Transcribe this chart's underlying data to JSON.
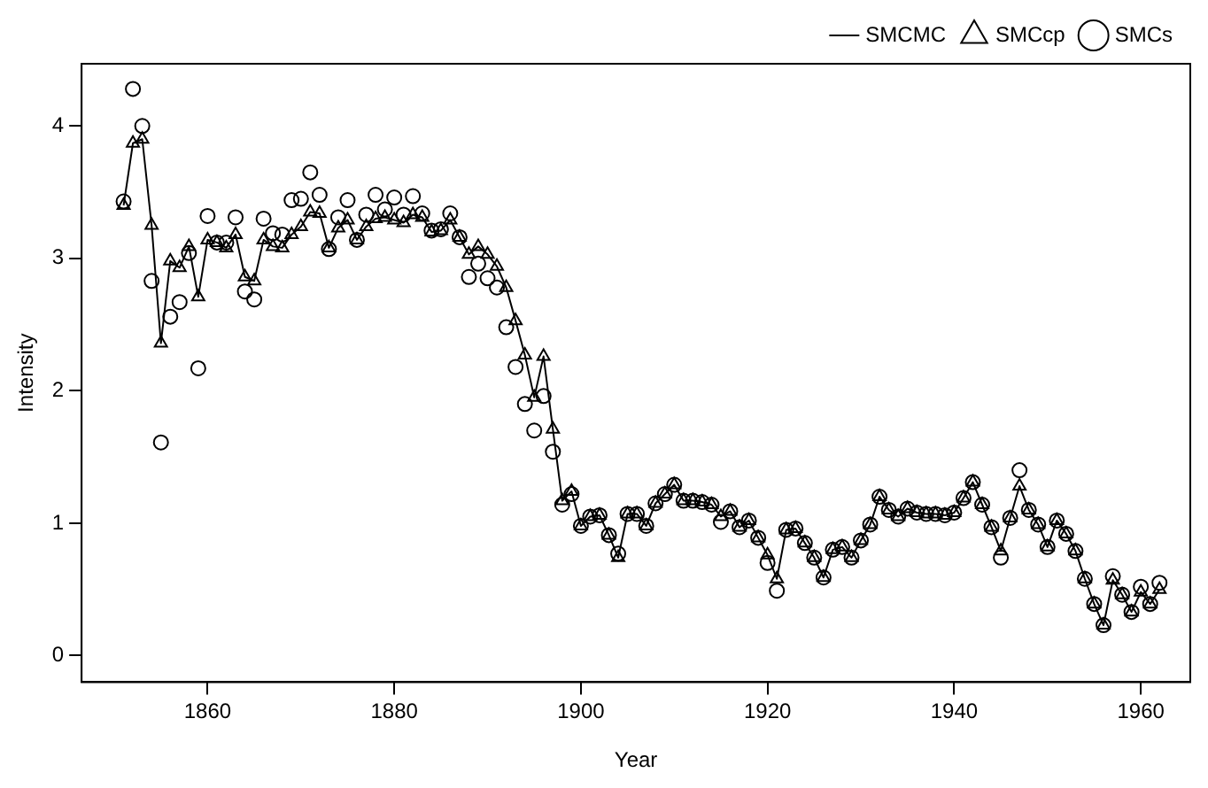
{
  "chart_data": {
    "type": "line",
    "xlabel": "Year",
    "ylabel": "Intensity",
    "x": [
      1851,
      1852,
      1853,
      1854,
      1855,
      1856,
      1857,
      1858,
      1859,
      1860,
      1861,
      1862,
      1863,
      1864,
      1865,
      1866,
      1867,
      1868,
      1869,
      1870,
      1871,
      1872,
      1873,
      1874,
      1875,
      1876,
      1877,
      1878,
      1879,
      1880,
      1881,
      1882,
      1883,
      1884,
      1885,
      1886,
      1887,
      1888,
      1889,
      1890,
      1891,
      1892,
      1893,
      1894,
      1895,
      1896,
      1897,
      1898,
      1899,
      1900,
      1901,
      1902,
      1903,
      1904,
      1905,
      1906,
      1907,
      1908,
      1909,
      1910,
      1911,
      1912,
      1913,
      1914,
      1915,
      1916,
      1917,
      1918,
      1919,
      1920,
      1921,
      1922,
      1923,
      1924,
      1925,
      1926,
      1927,
      1928,
      1929,
      1930,
      1931,
      1932,
      1933,
      1934,
      1935,
      1936,
      1937,
      1938,
      1939,
      1940,
      1941,
      1942,
      1943,
      1944,
      1945,
      1946,
      1947,
      1948,
      1949,
      1950,
      1951,
      1952,
      1953,
      1954,
      1955,
      1956,
      1957,
      1958,
      1959,
      1960,
      1961,
      1962
    ],
    "series": [
      {
        "name": "SMCMC",
        "type": "line",
        "marker": "none",
        "line_style": "solid",
        "color": "#000000",
        "values": [
          3.4,
          3.87,
          3.9,
          3.25,
          2.36,
          2.98,
          2.93,
          3.09,
          2.71,
          3.14,
          3.12,
          3.08,
          3.18,
          2.86,
          2.83,
          3.14,
          3.09,
          3.08,
          3.18,
          3.24,
          3.35,
          3.34,
          3.08,
          3.23,
          3.29,
          3.14,
          3.24,
          3.3,
          3.31,
          3.29,
          3.27,
          3.33,
          3.31,
          3.2,
          3.21,
          3.29,
          3.16,
          3.03,
          3.09,
          3.03,
          2.94,
          2.78,
          2.53,
          2.27,
          1.95,
          2.26,
          1.71,
          1.17,
          1.24,
          0.98,
          1.05,
          1.06,
          0.91,
          0.74,
          1.07,
          1.07,
          0.98,
          1.15,
          1.22,
          1.29,
          1.17,
          1.17,
          1.16,
          1.14,
          1.05,
          1.09,
          0.97,
          1.02,
          0.89,
          0.76,
          0.58,
          0.95,
          0.96,
          0.85,
          0.74,
          0.59,
          0.8,
          0.82,
          0.74,
          0.87,
          0.99,
          1.2,
          1.1,
          1.05,
          1.11,
          1.08,
          1.07,
          1.07,
          1.06,
          1.08,
          1.19,
          1.31,
          1.14,
          0.97,
          0.79,
          1.04,
          1.28,
          1.1,
          0.99,
          0.82,
          1.02,
          0.92,
          0.79,
          0.58,
          0.39,
          0.23,
          0.57,
          0.46,
          0.33,
          0.48,
          0.39,
          0.5
        ]
      },
      {
        "name": "SMCcp",
        "type": "scatter",
        "marker": "triangle",
        "color": "#000000",
        "values": [
          3.4,
          3.87,
          3.9,
          3.25,
          2.36,
          2.98,
          2.93,
          3.09,
          2.71,
          3.14,
          3.12,
          3.08,
          3.18,
          2.86,
          2.83,
          3.14,
          3.09,
          3.08,
          3.18,
          3.24,
          3.35,
          3.34,
          3.08,
          3.23,
          3.29,
          3.14,
          3.24,
          3.3,
          3.31,
          3.29,
          3.27,
          3.33,
          3.31,
          3.2,
          3.21,
          3.29,
          3.16,
          3.03,
          3.09,
          3.03,
          2.94,
          2.78,
          2.53,
          2.27,
          1.95,
          2.26,
          1.71,
          1.17,
          1.24,
          0.98,
          1.05,
          1.06,
          0.91,
          0.74,
          1.07,
          1.07,
          0.98,
          1.15,
          1.22,
          1.29,
          1.17,
          1.17,
          1.16,
          1.14,
          1.05,
          1.09,
          0.97,
          1.02,
          0.89,
          0.76,
          0.58,
          0.95,
          0.96,
          0.85,
          0.74,
          0.59,
          0.8,
          0.82,
          0.74,
          0.87,
          0.99,
          1.2,
          1.1,
          1.05,
          1.11,
          1.08,
          1.07,
          1.07,
          1.06,
          1.08,
          1.19,
          1.31,
          1.14,
          0.97,
          0.79,
          1.04,
          1.28,
          1.1,
          0.99,
          0.82,
          1.02,
          0.92,
          0.79,
          0.58,
          0.39,
          0.23,
          0.57,
          0.46,
          0.33,
          0.48,
          0.39,
          0.5
        ]
      },
      {
        "name": "SMCs",
        "type": "scatter",
        "marker": "circle",
        "color": "#000000",
        "values": [
          3.43,
          4.28,
          4.0,
          2.83,
          1.61,
          2.56,
          2.67,
          3.04,
          2.17,
          3.32,
          3.12,
          3.12,
          3.31,
          2.75,
          2.69,
          3.3,
          3.19,
          3.18,
          3.44,
          3.45,
          3.65,
          3.48,
          3.07,
          3.31,
          3.44,
          3.14,
          3.33,
          3.48,
          3.37,
          3.46,
          3.33,
          3.47,
          3.34,
          3.21,
          3.22,
          3.34,
          3.16,
          2.86,
          2.96,
          2.85,
          2.78,
          2.48,
          2.18,
          1.9,
          1.7,
          1.96,
          1.54,
          1.14,
          1.22,
          0.98,
          1.05,
          1.06,
          0.91,
          0.77,
          1.07,
          1.07,
          0.98,
          1.15,
          1.22,
          1.29,
          1.17,
          1.17,
          1.16,
          1.14,
          1.01,
          1.09,
          0.97,
          1.02,
          0.89,
          0.7,
          0.49,
          0.95,
          0.96,
          0.85,
          0.74,
          0.59,
          0.8,
          0.82,
          0.74,
          0.87,
          0.99,
          1.2,
          1.1,
          1.05,
          1.11,
          1.08,
          1.07,
          1.07,
          1.06,
          1.08,
          1.19,
          1.31,
          1.14,
          0.97,
          0.74,
          1.04,
          1.4,
          1.1,
          0.99,
          0.82,
          1.02,
          0.92,
          0.79,
          0.58,
          0.39,
          0.23,
          0.6,
          0.46,
          0.33,
          0.52,
          0.39,
          0.55
        ]
      }
    ],
    "xlim": [
      1846.5,
      1965.3
    ],
    "xticks": [
      1860,
      1880,
      1900,
      1920,
      1940,
      1960
    ],
    "ylim": [
      -0.2,
      4.47
    ],
    "yticks": [
      0,
      1,
      2,
      3,
      4
    ],
    "grid": false,
    "legend": "top right"
  }
}
